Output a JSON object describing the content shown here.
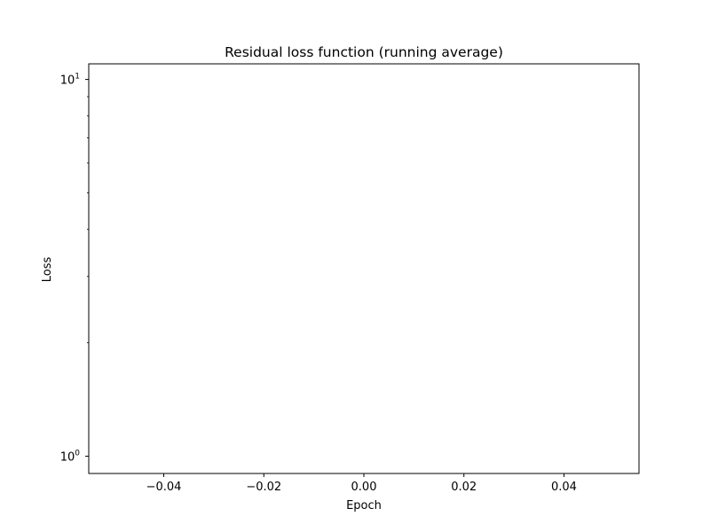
{
  "chart_data": {
    "type": "line",
    "title": "Residual loss function (running average)",
    "xlabel": "Epoch",
    "ylabel": "Loss",
    "series": [
      {
        "values": []
      }
    ],
    "x": [],
    "xlim": [
      -0.055,
      0.055
    ],
    "ylim": [
      0.9,
      11
    ],
    "yscale": "log",
    "xticks": [
      -0.04,
      -0.02,
      0.0,
      0.02,
      0.04
    ],
    "xtick_labels": [
      "−0.04",
      "−0.02",
      "0.00",
      "0.02",
      "0.04"
    ],
    "yticks_major": [
      1,
      10
    ],
    "yticks_minor": [
      2,
      3,
      4,
      5,
      6,
      7,
      8,
      9
    ],
    "ytick_labels": [
      {
        "base": "10",
        "exp": "0"
      },
      {
        "base": "10",
        "exp": "1"
      }
    ],
    "grid": false,
    "legend": "none",
    "colors": {
      "frame": "#000000",
      "line": "#1f77b4",
      "background": "#ffffff"
    }
  }
}
